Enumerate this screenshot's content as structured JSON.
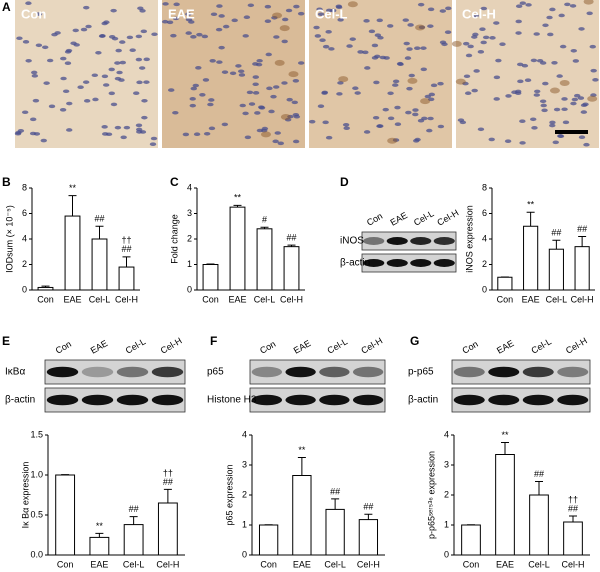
{
  "panel_labels": [
    "A",
    "B",
    "C",
    "D",
    "E",
    "F",
    "G"
  ],
  "micrographs": [
    "Con",
    "EAE",
    "Cel-L",
    "Cel-H"
  ],
  "blots": [
    {
      "lanes": [
        "Con",
        "EAE",
        "Cel-L",
        "Cel-H"
      ],
      "rows": [
        "iNOS",
        "β-actin"
      ]
    },
    {
      "lanes": [
        "Con",
        "EAE",
        "Cel-L",
        "Cel-H"
      ],
      "rows": [
        "IκBα",
        "β-actin"
      ]
    },
    {
      "lanes": [
        "Con",
        "EAE",
        "Cel-L",
        "Cel-H"
      ],
      "rows": [
        "p65",
        "Histone H3"
      ]
    },
    {
      "lanes": [
        "Con",
        "EAE",
        "Cel-L",
        "Cel-H"
      ],
      "rows": [
        "p-p65",
        "β-actin"
      ]
    }
  ],
  "chart_data": [
    {
      "type": "bar",
      "y_label": "IODsum (× 10⁻⁵)",
      "categories": [
        "Con",
        "EAE",
        "Cel-L",
        "Cel-H"
      ],
      "values": [
        0.2,
        5.8,
        4.0,
        1.8
      ],
      "errors": [
        0.1,
        1.6,
        1.0,
        0.8
      ],
      "annotations": [
        [],
        [
          "**"
        ],
        [
          "##"
        ],
        [
          "††",
          "##"
        ]
      ],
      "ylim": [
        0,
        8
      ],
      "yticks": [
        0,
        2,
        4,
        6,
        8
      ]
    },
    {
      "type": "bar",
      "y_label": "Fold change",
      "categories": [
        "Con",
        "EAE",
        "Cel-L",
        "Cel-H"
      ],
      "values": [
        1.0,
        3.25,
        2.4,
        1.7
      ],
      "errors": [
        0.02,
        0.07,
        0.06,
        0.06
      ],
      "annotations": [
        [],
        [
          "**"
        ],
        [
          "#"
        ],
        [
          "##"
        ]
      ],
      "ylim": [
        0,
        4
      ],
      "yticks": [
        0,
        1,
        2,
        3,
        4
      ]
    },
    {
      "type": "bar",
      "y_label": "iNOS expression",
      "categories": [
        "Con",
        "EAE",
        "Cel-L",
        "Cel-H"
      ],
      "values": [
        1.0,
        5.0,
        3.2,
        3.4
      ],
      "errors": [
        0.02,
        1.1,
        0.7,
        0.8
      ],
      "annotations": [
        [],
        [
          "**"
        ],
        [
          "##"
        ],
        [
          "##"
        ]
      ],
      "ylim": [
        0,
        8
      ],
      "yticks": [
        0,
        2,
        4,
        6,
        8
      ]
    },
    {
      "type": "bar",
      "y_label": "Iκ Bα expression",
      "categories": [
        "Con",
        "EAE",
        "Cel-L",
        "Cel-H"
      ],
      "values": [
        1.0,
        0.22,
        0.38,
        0.65
      ],
      "errors": [
        0.005,
        0.05,
        0.1,
        0.17
      ],
      "annotations": [
        [],
        [
          "**"
        ],
        [
          "##"
        ],
        [
          "††",
          "##"
        ]
      ],
      "ylim": [
        0,
        1.5
      ],
      "yticks": [
        {
          "value": 0,
          "label": "0.0"
        },
        0.5,
        {
          "value": 1,
          "label": "1.0"
        },
        1.5
      ]
    },
    {
      "type": "bar",
      "y_label": "p65 expression",
      "categories": [
        "Con",
        "EAE",
        "Cel-L",
        "Cel-H"
      ],
      "values": [
        1.0,
        2.65,
        1.52,
        1.18
      ],
      "errors": [
        0.01,
        0.6,
        0.35,
        0.18
      ],
      "annotations": [
        [],
        [
          "**"
        ],
        [
          "##"
        ],
        [
          "##"
        ]
      ],
      "ylim": [
        0,
        4
      ],
      "yticks": [
        0,
        1,
        2,
        3,
        4
      ]
    },
    {
      "type": "bar",
      "y_label": "p-p65ˢᵉʳ⁵³⁶ expression",
      "categories": [
        "Con",
        "EAE",
        "Cel-L",
        "Cel-H"
      ],
      "values": [
        1.0,
        3.35,
        2.0,
        1.1
      ],
      "errors": [
        0.01,
        0.4,
        0.45,
        0.2
      ],
      "annotations": [
        [],
        [
          "**"
        ],
        [
          "##"
        ],
        [
          "††",
          "##"
        ]
      ],
      "ylim": [
        0,
        4
      ],
      "yticks": [
        0,
        1,
        2,
        3,
        4
      ]
    }
  ]
}
